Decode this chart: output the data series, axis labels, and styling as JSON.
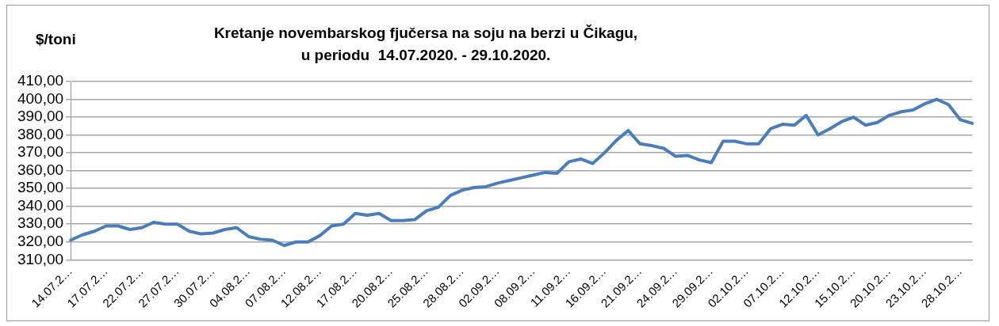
{
  "chart_data": {
    "type": "line",
    "title": "Kretanje novembarskog fjučersa na soju na berzi u Čikagu,\nu periodu  14.07.2020. - 29.10.2020.",
    "ylabel": "$/toni",
    "categories": [
      "14.07.2…",
      null,
      null,
      "17.07.2…",
      null,
      null,
      "22.07.2…",
      null,
      null,
      "27.07.2…",
      null,
      null,
      "30.07.2…",
      null,
      null,
      "04.08.2…",
      null,
      null,
      "07.08.2…",
      null,
      null,
      "12.08.2…",
      null,
      null,
      "17.08.2…",
      null,
      null,
      "20.08.2…",
      null,
      null,
      "25.08.2…",
      null,
      null,
      "28.08.2…",
      null,
      null,
      "02.09.2…",
      null,
      null,
      "08.09.2…",
      null,
      null,
      "11.09.2…",
      null,
      null,
      "16.09.2…",
      null,
      null,
      "21.09.2…",
      null,
      null,
      "24.09.2…",
      null,
      null,
      "29.09.2…",
      null,
      null,
      "02.10.2…",
      null,
      null,
      "07.10.2…",
      null,
      null,
      "12.10.2…",
      null,
      null,
      "15.10.2…",
      null,
      null,
      "20.10.2…",
      null,
      null,
      "23.10.2…",
      null,
      null,
      "28.10.2…",
      null
    ],
    "series": [
      {
        "color": "#4a7ebb",
        "values": [
          321,
          324,
          326,
          329,
          329,
          327,
          328,
          331,
          330,
          330,
          326,
          324.5,
          325,
          327,
          328,
          323,
          321.5,
          321,
          318,
          320,
          320,
          323.5,
          329,
          330,
          336,
          335,
          336,
          332,
          332,
          332.5,
          337.5,
          339.5,
          346,
          349,
          350.5,
          351,
          353,
          354.5,
          356,
          357.5,
          359,
          358.5,
          365,
          366.5,
          364,
          370,
          377,
          382.5,
          375,
          374,
          372.5,
          368,
          368.5,
          366,
          364.5,
          376.5,
          376.5,
          375,
          375,
          383.5,
          386,
          385.5,
          391,
          380,
          383.5,
          387.5,
          390,
          385.5,
          387,
          391,
          393,
          394,
          397.5,
          400,
          397,
          388.5,
          386.5
        ]
      }
    ],
    "ylim": [
      310,
      410
    ],
    "yticks": [
      {
        "value": 310,
        "label": "310,00"
      },
      {
        "value": 320,
        "label": "320,00"
      },
      {
        "value": 330,
        "label": "330,00"
      },
      {
        "value": 340,
        "label": "340,00"
      },
      {
        "value": 350,
        "label": "350,00"
      },
      {
        "value": 360,
        "label": "360,00"
      },
      {
        "value": 370,
        "label": "370,00"
      },
      {
        "value": 380,
        "label": "380,00"
      },
      {
        "value": 390,
        "label": "390,00"
      },
      {
        "value": 400,
        "label": "400,00"
      },
      {
        "value": 410,
        "label": "410,00"
      }
    ],
    "grid": "y",
    "legend": false,
    "marker": "none",
    "line_style": "solid"
  }
}
